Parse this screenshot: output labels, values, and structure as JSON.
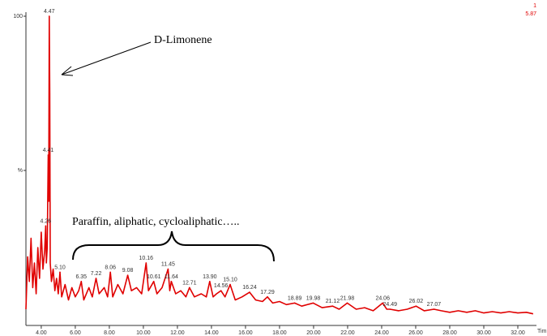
{
  "chart_data": {
    "type": "line",
    "x_label": "Tim",
    "corner_labels": [
      "1",
      "5.87"
    ],
    "annotations": [
      "D-Limonene",
      "Paraffin, aliphatic, cycloaliphatic….."
    ],
    "xlim": [
      3.1,
      33
    ],
    "ylim": [
      0,
      100
    ],
    "xticks": [
      {
        "value": 4,
        "label": "4.00"
      },
      {
        "value": 6,
        "label": "6.00"
      },
      {
        "value": 8,
        "label": "8.00"
      },
      {
        "value": 10,
        "label": "10.00"
      },
      {
        "value": 12,
        "label": "12.00"
      },
      {
        "value": 14,
        "label": "14.00"
      },
      {
        "value": 16,
        "label": "16.00"
      },
      {
        "value": 18,
        "label": "18.00"
      },
      {
        "value": 20,
        "label": "20.00"
      },
      {
        "value": 22,
        "label": "22.00"
      },
      {
        "value": 24,
        "label": "24.00"
      },
      {
        "value": 26,
        "label": "26.00"
      },
      {
        "value": 28,
        "label": "28.00"
      },
      {
        "value": 30,
        "label": "30.00"
      },
      {
        "value": 32,
        "label": "32.00"
      }
    ],
    "yticks": [
      {
        "value": 50,
        "label": "%"
      },
      100
    ],
    "x": [
      3.1,
      3.2,
      3.3,
      3.4,
      3.5,
      3.6,
      3.7,
      3.8,
      3.9,
      4.0,
      4.1,
      4.2,
      4.26,
      4.3,
      4.35,
      4.41,
      4.44,
      4.47,
      4.5,
      4.53,
      4.6,
      4.7,
      4.8,
      4.9,
      5.0,
      5.1,
      5.2,
      5.4,
      5.6,
      5.8,
      6.0,
      6.2,
      6.35,
      6.5,
      6.8,
      7.0,
      7.22,
      7.4,
      7.7,
      7.9,
      8.06,
      8.2,
      8.5,
      8.8,
      9.08,
      9.3,
      9.6,
      9.9,
      10.16,
      10.3,
      10.61,
      10.8,
      11.1,
      11.45,
      11.55,
      11.64,
      11.9,
      12.2,
      12.5,
      12.71,
      13.0,
      13.4,
      13.7,
      13.9,
      14.1,
      14.3,
      14.56,
      14.8,
      15.1,
      15.4,
      15.8,
      16.24,
      16.6,
      17.0,
      17.29,
      17.6,
      18.0,
      18.4,
      18.89,
      19.3,
      19.98,
      20.5,
      21.12,
      21.5,
      21.98,
      22.5,
      23.0,
      23.5,
      24.06,
      24.3,
      24.49,
      25.0,
      25.5,
      26.02,
      26.5,
      27.07,
      27.5,
      28.0,
      28.5,
      29.0,
      29.5,
      30.0,
      30.5,
      31.0,
      31.5,
      32.0,
      32.5,
      32.9
    ],
    "series": [
      {
        "color": "#e00000",
        "values": [
          5,
          22,
          14,
          28,
          12,
          20,
          10,
          25,
          15,
          30,
          18,
          24,
          32,
          20,
          25,
          55,
          40,
          100,
          75,
          20,
          14,
          18,
          11,
          15,
          10,
          17,
          9,
          13,
          8,
          12,
          9,
          11,
          14,
          8,
          12,
          9,
          15,
          10,
          12,
          9,
          17,
          9,
          13,
          10,
          16,
          11,
          12,
          10,
          20,
          11,
          14,
          10,
          12,
          18,
          11,
          14,
          10,
          11,
          9,
          12,
          9,
          10,
          9,
          14,
          9,
          10,
          11,
          9,
          13,
          8,
          9,
          10.5,
          8,
          7.5,
          9,
          7,
          7.5,
          6.5,
          7,
          6,
          7,
          5.5,
          6,
          5,
          7,
          5,
          5.5,
          4.5,
          7,
          5,
          5,
          4.5,
          5,
          6,
          4.5,
          5,
          4.5,
          4,
          4.5,
          4,
          4.5,
          3.8,
          4.2,
          3.8,
          4.2,
          3.8,
          4,
          3.5
        ]
      }
    ],
    "peaks": {
      "x": [
        4.47,
        4.41,
        4.26,
        5.1,
        6.35,
        7.22,
        8.06,
        9.08,
        10.16,
        10.61,
        11.45,
        11.64,
        12.71,
        13.9,
        14.56,
        15.1,
        16.24,
        17.29,
        18.89,
        19.98,
        21.12,
        21.98,
        24.06,
        24.49,
        26.02,
        27.07
      ],
      "y": [
        100,
        55,
        32,
        17,
        14,
        15,
        17,
        16,
        20,
        14,
        18,
        14,
        12,
        14,
        11,
        13,
        10.5,
        9,
        7,
        7,
        6,
        7,
        7,
        5,
        6,
        5
      ],
      "labels": [
        "4.47",
        "4.41",
        "4.26",
        "5.10",
        "6.35",
        "7.22",
        "8.06",
        "9.08",
        "10.16",
        "10.61",
        "11.45",
        "11.64",
        "12.71",
        "13.90",
        "14.56",
        "15.10",
        "16.24",
        "17.29",
        "18.89",
        "19.98",
        "21.12",
        "21.98",
        "24.06",
        "24.49",
        "26.02",
        "27.07"
      ]
    }
  }
}
